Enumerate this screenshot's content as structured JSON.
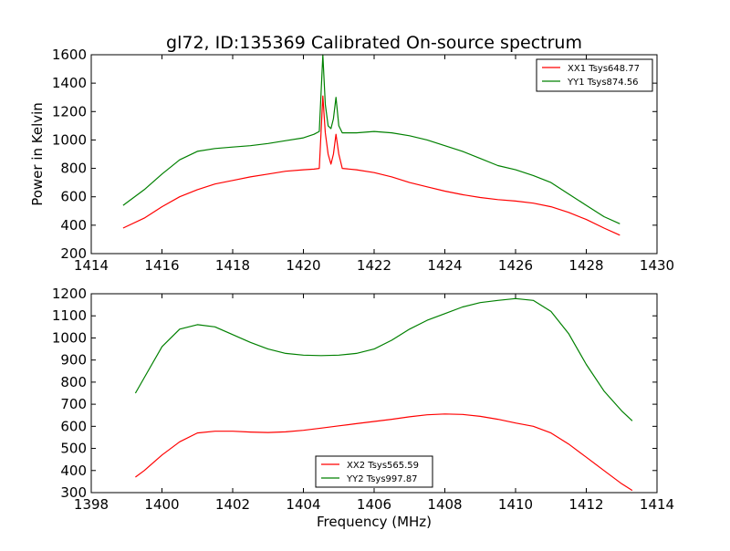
{
  "chart_data": [
    {
      "type": "line",
      "title": "gl72, ID:135369 Calibrated On-source spectrum",
      "xlabel": "",
      "ylabel": "Power in Kelvin",
      "xlim": [
        1414,
        1430
      ],
      "ylim": [
        200,
        1600
      ],
      "xticks": [
        "1414",
        "1416",
        "1418",
        "1420",
        "1422",
        "1424",
        "1426",
        "1428",
        "1430"
      ],
      "yticks": [
        "200",
        "400",
        "600",
        "800",
        "1000",
        "1200",
        "1400",
        "1600"
      ],
      "legend_position": "top-right",
      "series": [
        {
          "name": "XX1 Tsys648.77",
          "color": "#ff0000",
          "x": [
            1414.9,
            1415.5,
            1416.0,
            1416.5,
            1417.0,
            1417.5,
            1418.0,
            1418.5,
            1419.0,
            1419.5,
            1420.0,
            1420.3,
            1420.45,
            1420.55,
            1420.62,
            1420.7,
            1420.78,
            1420.85,
            1420.92,
            1421.0,
            1421.1,
            1421.5,
            1422.0,
            1422.5,
            1423.0,
            1423.5,
            1424.0,
            1424.5,
            1425.0,
            1425.5,
            1426.0,
            1426.5,
            1427.0,
            1427.5,
            1428.0,
            1428.5,
            1428.95
          ],
          "y": [
            380,
            450,
            530,
            600,
            650,
            690,
            715,
            740,
            760,
            780,
            790,
            795,
            800,
            1310,
            1050,
            900,
            830,
            900,
            1040,
            900,
            800,
            790,
            770,
            740,
            700,
            670,
            640,
            615,
            595,
            580,
            570,
            555,
            530,
            490,
            440,
            380,
            330
          ]
        },
        {
          "name": "YY1 Tsys874.56",
          "color": "#008000",
          "x": [
            1414.9,
            1415.5,
            1416.0,
            1416.5,
            1417.0,
            1417.5,
            1418.0,
            1418.5,
            1419.0,
            1419.5,
            1420.0,
            1420.3,
            1420.45,
            1420.55,
            1420.62,
            1420.7,
            1420.78,
            1420.85,
            1420.92,
            1421.0,
            1421.1,
            1421.5,
            1422.0,
            1422.5,
            1423.0,
            1423.5,
            1424.0,
            1424.5,
            1425.0,
            1425.5,
            1426.0,
            1426.5,
            1427.0,
            1427.5,
            1428.0,
            1428.5,
            1428.95
          ],
          "y": [
            540,
            650,
            760,
            860,
            920,
            940,
            950,
            960,
            975,
            995,
            1015,
            1040,
            1060,
            1600,
            1250,
            1100,
            1080,
            1150,
            1300,
            1100,
            1050,
            1050,
            1060,
            1050,
            1030,
            1000,
            960,
            920,
            870,
            820,
            790,
            750,
            700,
            620,
            540,
            460,
            410
          ]
        }
      ]
    },
    {
      "type": "line",
      "title": "",
      "xlabel": "Frequency (MHz)",
      "ylabel": "",
      "xlim": [
        1398,
        1414
      ],
      "ylim": [
        300,
        1200
      ],
      "xticks": [
        "1398",
        "1400",
        "1402",
        "1404",
        "1406",
        "1408",
        "1410",
        "1412",
        "1414"
      ],
      "yticks": [
        "300",
        "400",
        "500",
        "600",
        "700",
        "800",
        "900",
        "1000",
        "1100",
        "1200"
      ],
      "legend_position": "bottom-center",
      "series": [
        {
          "name": "XX2 Tsys565.59",
          "color": "#ff0000",
          "x": [
            1399.25,
            1399.5,
            1400.0,
            1400.5,
            1401.0,
            1401.5,
            1402.0,
            1402.5,
            1403.0,
            1403.5,
            1404.0,
            1404.5,
            1405.0,
            1405.5,
            1406.0,
            1406.5,
            1407.0,
            1407.5,
            1408.0,
            1408.5,
            1409.0,
            1409.5,
            1410.0,
            1410.5,
            1411.0,
            1411.5,
            1412.0,
            1412.5,
            1413.0,
            1413.3
          ],
          "y": [
            370,
            400,
            470,
            530,
            570,
            578,
            578,
            574,
            572,
            575,
            582,
            592,
            602,
            612,
            622,
            632,
            643,
            652,
            656,
            654,
            645,
            632,
            615,
            600,
            570,
            520,
            460,
            400,
            340,
            310
          ]
        },
        {
          "name": "YY2 Tsys997.87",
          "color": "#008000",
          "x": [
            1399.25,
            1399.5,
            1400.0,
            1400.5,
            1401.0,
            1401.5,
            1402.0,
            1402.5,
            1403.0,
            1403.5,
            1404.0,
            1404.5,
            1405.0,
            1405.5,
            1406.0,
            1406.5,
            1407.0,
            1407.5,
            1408.0,
            1408.5,
            1409.0,
            1409.5,
            1410.0,
            1410.5,
            1411.0,
            1411.5,
            1412.0,
            1412.5,
            1413.0,
            1413.3
          ],
          "y": [
            750,
            820,
            960,
            1040,
            1060,
            1050,
            1015,
            980,
            950,
            930,
            922,
            920,
            922,
            930,
            950,
            990,
            1040,
            1080,
            1110,
            1140,
            1160,
            1170,
            1178,
            1170,
            1120,
            1020,
            880,
            760,
            670,
            625
          ]
        }
      ]
    }
  ]
}
